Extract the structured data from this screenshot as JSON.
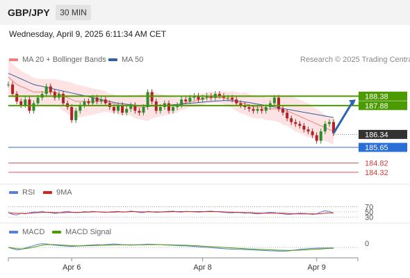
{
  "header": {
    "symbol": "GBP/JPY",
    "timeframe": "30 MIN"
  },
  "datetime": "Wednesday, April 9, 2025 6:11:34 AM CET",
  "legend": {
    "ma20_label": "MA 20 + Bollinger Bands",
    "ma50_label": "MA 50",
    "copyright": "Research © 2025 Trading Central",
    "rsi_label": "RSI",
    "rsi_ma_label": "9MA",
    "macd_label": "MACD",
    "macd_signal_label": "MACD Signal"
  },
  "colors": {
    "ma20": "#f08080",
    "ma50": "#3060a0",
    "bollinger_fill": "#fde3e3",
    "resistance": "#4a9a00",
    "support_blue": "#2a6fd6",
    "support_red": "#d33c3c",
    "current_price_bg": "#333333",
    "arrow": "#2a66b0",
    "rsi": "#5a7fd8",
    "rsi_ma": "#d32020",
    "macd": "#5a7fd8",
    "macd_signal": "#4a9a00"
  },
  "chart_data": {
    "type": "candlestick",
    "x_tick_labels": [
      "Apr 6",
      "Apr 8",
      "Apr 9"
    ],
    "price_ylim": [
      183.8,
      189.8
    ],
    "levels": [
      {
        "value": 188.38,
        "label": "188.38",
        "kind": "resistance"
      },
      {
        "value": 187.88,
        "label": "187.88",
        "kind": "resistance"
      },
      {
        "value": 186.34,
        "label": "186.34",
        "kind": "current"
      },
      {
        "value": 185.65,
        "label": "185.65",
        "kind": "support"
      },
      {
        "value": 184.82,
        "label": "184.82",
        "kind": "support"
      },
      {
        "value": 184.32,
        "label": "184.32",
        "kind": "support"
      }
    ],
    "arrow_target": 188.2,
    "close": [
      189.0,
      188.5,
      188.1,
      187.9,
      188.2,
      187.6,
      188.0,
      188.3,
      188.5,
      188.9,
      188.6,
      188.3,
      188.5,
      188.0,
      187.8,
      187.1,
      187.6,
      187.9,
      188.1,
      188.0,
      188.3,
      188.1,
      188.2,
      188.0,
      187.8,
      187.6,
      187.9,
      187.5,
      187.7,
      187.9,
      187.6,
      187.5,
      187.8,
      188.6,
      188.1,
      187.6,
      187.8,
      188.0,
      187.6,
      187.8,
      187.9,
      188.2,
      188.1,
      188.3,
      188.4,
      188.2,
      188.3,
      188.4,
      188.3,
      188.5,
      188.4,
      188.3,
      188.3,
      188.2,
      188.0,
      187.9,
      187.8,
      187.7,
      187.6,
      187.7,
      187.6,
      187.8,
      188.0,
      188.3,
      187.7,
      187.5,
      187.2,
      187.0,
      186.9,
      186.8,
      186.6,
      186.5,
      186.3,
      186.0,
      186.5,
      186.9,
      187.0,
      186.4
    ],
    "ma20": [
      189.4,
      189.2,
      189.0,
      188.9,
      188.8,
      188.7,
      188.6,
      188.6,
      188.6,
      188.6,
      188.6,
      188.6,
      188.5,
      188.4,
      188.3,
      188.2,
      188.1,
      188.1,
      188.1,
      188.1,
      188.1,
      188.1,
      188.1,
      188.1,
      188.0,
      188.0,
      187.9,
      187.9,
      187.9,
      187.9,
      187.8,
      187.8,
      187.8,
      187.8,
      187.9,
      187.9,
      187.9,
      187.9,
      187.9,
      187.9,
      187.9,
      188.0,
      188.0,
      188.1,
      188.1,
      188.2,
      188.2,
      188.3,
      188.3,
      188.3,
      188.3,
      188.3,
      188.2,
      188.2,
      188.1,
      188.0,
      188.0,
      187.9,
      187.8,
      187.8,
      187.8,
      187.7,
      187.7,
      187.7,
      187.7,
      187.6,
      187.6,
      187.5,
      187.4,
      187.3,
      187.2,
      187.1,
      187.0,
      186.9,
      186.8,
      186.7,
      186.6,
      186.5
    ],
    "ma50": [
      189.6,
      189.5,
      189.4,
      189.3,
      189.2,
      189.1,
      189.0,
      188.95,
      188.9,
      188.85,
      188.8,
      188.75,
      188.7,
      188.65,
      188.6,
      188.55,
      188.5,
      188.45,
      188.4,
      188.35,
      188.3,
      188.25,
      188.2,
      188.15,
      188.1,
      188.05,
      188.0,
      187.98,
      187.95,
      187.93,
      187.9,
      187.88,
      187.86,
      187.85,
      187.85,
      187.86,
      187.87,
      187.88,
      187.9,
      187.92,
      187.94,
      187.96,
      187.98,
      188.0,
      188.02,
      188.04,
      188.06,
      188.08,
      188.1,
      188.12,
      188.13,
      188.14,
      188.14,
      188.13,
      188.12,
      188.1,
      188.07,
      188.04,
      188.0,
      187.96,
      187.92,
      187.88,
      187.84,
      187.8,
      187.76,
      187.72,
      187.68,
      187.64,
      187.6,
      187.56,
      187.52,
      187.48,
      187.44,
      187.4,
      187.36,
      187.32,
      187.28,
      187.24
    ],
    "bollinger_width": [
      0.9,
      0.9,
      0.9,
      0.85,
      0.8,
      0.8,
      0.75,
      0.7,
      0.7,
      0.7,
      0.7,
      0.7,
      0.75,
      0.8,
      0.85,
      0.9,
      0.9,
      0.85,
      0.8,
      0.75,
      0.7,
      0.65,
      0.6,
      0.55,
      0.5,
      0.5,
      0.5,
      0.5,
      0.5,
      0.55,
      0.6,
      0.65,
      0.7,
      0.75,
      0.7,
      0.65,
      0.6,
      0.55,
      0.5,
      0.45,
      0.4,
      0.35,
      0.3,
      0.3,
      0.3,
      0.3,
      0.3,
      0.3,
      0.3,
      0.3,
      0.3,
      0.35,
      0.4,
      0.45,
      0.5,
      0.55,
      0.6,
      0.6,
      0.6,
      0.6,
      0.6,
      0.6,
      0.6,
      0.65,
      0.7,
      0.75,
      0.8,
      0.85,
      0.9,
      0.9,
      0.9,
      0.9,
      0.85,
      0.8,
      0.75,
      0.7,
      0.7,
      0.7
    ],
    "rsi": {
      "levels": [
        70,
        50,
        30
      ],
      "values": [
        48,
        40,
        38,
        45,
        42,
        46,
        50,
        49,
        52,
        48,
        47,
        44,
        46,
        50,
        52,
        49,
        47,
        48,
        51,
        50,
        52,
        50,
        49,
        48,
        50,
        51,
        52,
        49,
        50,
        53,
        51,
        48,
        47,
        52,
        50,
        48,
        49,
        51,
        52,
        53,
        50,
        49,
        52,
        51,
        50,
        49,
        50,
        52,
        53,
        51,
        50,
        48,
        47,
        46,
        48,
        47,
        45,
        46,
        44,
        42,
        44,
        46,
        48,
        47,
        44,
        42,
        40,
        41,
        43,
        45,
        44,
        43,
        40,
        42,
        50,
        54,
        52,
        45
      ],
      "ma": [
        46,
        45,
        44,
        44,
        44,
        45,
        46,
        47,
        48,
        48,
        48,
        47,
        47,
        47,
        48,
        48,
        48,
        48,
        49,
        49,
        50,
        50,
        50,
        49,
        49,
        49,
        50,
        50,
        50,
        51,
        51,
        50,
        50,
        50,
        50,
        50,
        50,
        50,
        50,
        51,
        51,
        51,
        51,
        51,
        51,
        51,
        51,
        51,
        51,
        51,
        51,
        50,
        49,
        49,
        48,
        48,
        47,
        47,
        46,
        45,
        45,
        45,
        45,
        45,
        45,
        45,
        44,
        43,
        42,
        42,
        42,
        42,
        42,
        42,
        43,
        45,
        46,
        46
      ]
    },
    "macd": {
      "values": [
        0.0,
        -0.1,
        -0.2,
        -0.15,
        -0.05,
        0.05,
        0.15,
        0.25,
        0.3,
        0.28,
        0.22,
        0.18,
        0.15,
        0.12,
        0.1,
        0.08,
        0.1,
        0.12,
        0.15,
        0.18,
        0.2,
        0.22,
        0.2,
        0.22,
        0.25,
        0.28,
        0.25,
        0.22,
        0.2,
        0.18,
        0.2,
        0.22,
        0.24,
        0.26,
        0.25,
        0.24,
        0.22,
        0.2,
        0.18,
        0.17,
        0.15,
        0.13,
        0.12,
        0.1,
        0.08,
        0.05,
        0.02,
        0.0,
        -0.02,
        -0.05,
        -0.08,
        -0.1,
        -0.12,
        -0.14,
        -0.15,
        -0.16,
        -0.17,
        -0.18,
        -0.2,
        -0.22,
        -0.24,
        -0.25,
        -0.27,
        -0.28,
        -0.3,
        -0.3,
        -0.29,
        -0.25,
        -0.2,
        -0.15,
        -0.12,
        -0.1,
        -0.08,
        -0.06,
        -0.05,
        -0.05,
        -0.04,
        -0.04
      ],
      "signal": [
        0.0,
        -0.05,
        -0.1,
        -0.12,
        -0.1,
        -0.05,
        0.02,
        0.1,
        0.18,
        0.22,
        0.23,
        0.22,
        0.2,
        0.18,
        0.16,
        0.14,
        0.13,
        0.13,
        0.13,
        0.14,
        0.15,
        0.16,
        0.17,
        0.18,
        0.19,
        0.2,
        0.21,
        0.21,
        0.21,
        0.21,
        0.21,
        0.21,
        0.21,
        0.22,
        0.22,
        0.22,
        0.22,
        0.21,
        0.21,
        0.2,
        0.19,
        0.18,
        0.17,
        0.16,
        0.14,
        0.12,
        0.1,
        0.08,
        0.06,
        0.04,
        0.02,
        0.0,
        -0.02,
        -0.04,
        -0.06,
        -0.08,
        -0.1,
        -0.12,
        -0.13,
        -0.15,
        -0.16,
        -0.18,
        -0.19,
        -0.21,
        -0.22,
        -0.23,
        -0.24,
        -0.24,
        -0.23,
        -0.22,
        -0.2,
        -0.18,
        -0.16,
        -0.14,
        -0.12,
        -0.1,
        -0.08,
        -0.07
      ],
      "zero_label": "0"
    }
  }
}
